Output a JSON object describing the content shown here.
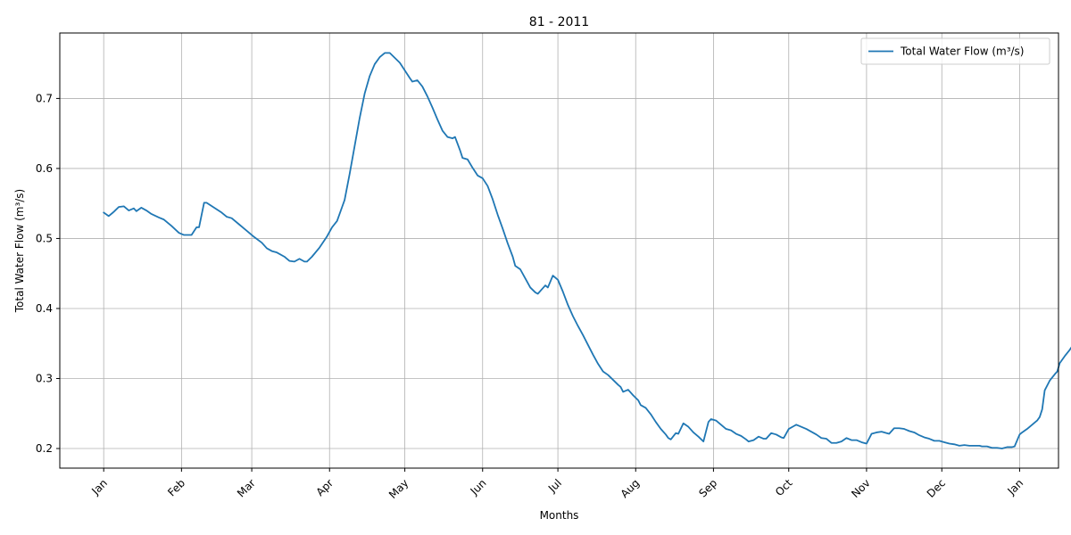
{
  "chart_data": {
    "type": "line",
    "title": "81 - 2011",
    "xlabel": "Months",
    "ylabel": "Total Water Flow (m³/s)",
    "x_ticks": [
      "Jan",
      "Feb",
      "Mar",
      "Apr",
      "May",
      "Jun",
      "Jul",
      "Aug",
      "Sep",
      "Oct",
      "Nov",
      "Dec",
      "Jan"
    ],
    "x_tick_days": [
      1,
      32,
      60,
      91,
      121,
      152,
      182,
      213,
      244,
      274,
      305,
      335,
      366
    ],
    "x_tick_rotation_deg": -45,
    "xlim_days": [
      -16.5,
      381.5
    ],
    "y_ticks": [
      0.2,
      0.3,
      0.4,
      0.5,
      0.6,
      0.7
    ],
    "y_tick_labels": [
      "0.2",
      "0.3",
      "0.4",
      "0.5",
      "0.6",
      "0.7"
    ],
    "ylim": [
      0.172,
      0.7935
    ],
    "grid": true,
    "legend_position": "top-right",
    "series": [
      {
        "name": "Total Water Flow (m³/s)",
        "color": "#1f77b4",
        "points": [
          [
            1,
            0.537
          ],
          [
            3,
            0.532
          ],
          [
            5,
            0.538
          ],
          [
            7,
            0.545
          ],
          [
            9,
            0.546
          ],
          [
            11,
            0.54
          ],
          [
            13,
            0.543
          ],
          [
            14,
            0.539
          ],
          [
            16,
            0.544
          ],
          [
            18,
            0.54
          ],
          [
            20,
            0.535
          ],
          [
            23,
            0.53
          ],
          [
            25,
            0.527
          ],
          [
            28,
            0.518
          ],
          [
            31,
            0.508
          ],
          [
            33,
            0.505
          ],
          [
            35,
            0.505
          ],
          [
            36,
            0.505
          ],
          [
            38,
            0.516
          ],
          [
            39,
            0.516
          ],
          [
            41,
            0.551
          ],
          [
            42,
            0.551
          ],
          [
            45,
            0.544
          ],
          [
            48,
            0.537
          ],
          [
            50,
            0.531
          ],
          [
            52,
            0.529
          ],
          [
            55,
            0.52
          ],
          [
            58,
            0.511
          ],
          [
            61,
            0.502
          ],
          [
            64,
            0.494
          ],
          [
            66,
            0.486
          ],
          [
            68,
            0.482
          ],
          [
            70,
            0.48
          ],
          [
            73,
            0.474
          ],
          [
            75,
            0.468
          ],
          [
            77,
            0.467
          ],
          [
            79,
            0.471
          ],
          [
            81,
            0.467
          ],
          [
            82,
            0.467
          ],
          [
            84,
            0.474
          ],
          [
            87,
            0.487
          ],
          [
            90,
            0.503
          ],
          [
            92,
            0.516
          ],
          [
            94,
            0.525
          ],
          [
            96,
            0.545
          ],
          [
            97,
            0.555
          ],
          [
            99,
            0.592
          ],
          [
            101,
            0.632
          ],
          [
            103,
            0.672
          ],
          [
            105,
            0.707
          ],
          [
            107,
            0.732
          ],
          [
            109,
            0.749
          ],
          [
            111,
            0.759
          ],
          [
            113,
            0.765
          ],
          [
            115,
            0.765
          ],
          [
            117,
            0.758
          ],
          [
            119,
            0.751
          ],
          [
            121,
            0.74
          ],
          [
            123,
            0.729
          ],
          [
            124,
            0.724
          ],
          [
            126,
            0.726
          ],
          [
            128,
            0.717
          ],
          [
            130,
            0.703
          ],
          [
            132,
            0.687
          ],
          [
            134,
            0.67
          ],
          [
            136,
            0.654
          ],
          [
            138,
            0.645
          ],
          [
            140,
            0.643
          ],
          [
            141,
            0.645
          ],
          [
            143,
            0.626
          ],
          [
            144,
            0.615
          ],
          [
            146,
            0.613
          ],
          [
            148,
            0.601
          ],
          [
            150,
            0.59
          ],
          [
            152,
            0.586
          ],
          [
            154,
            0.575
          ],
          [
            156,
            0.556
          ],
          [
            158,
            0.534
          ],
          [
            160,
            0.514
          ],
          [
            162,
            0.493
          ],
          [
            164,
            0.474
          ],
          [
            165,
            0.461
          ],
          [
            167,
            0.456
          ],
          [
            169,
            0.443
          ],
          [
            171,
            0.43
          ],
          [
            173,
            0.423
          ],
          [
            174,
            0.421
          ],
          [
            176,
            0.429
          ],
          [
            177,
            0.433
          ],
          [
            178,
            0.43
          ],
          [
            180,
            0.447
          ],
          [
            182,
            0.441
          ],
          [
            184,
            0.424
          ],
          [
            186,
            0.405
          ],
          [
            188,
            0.389
          ],
          [
            190,
            0.375
          ],
          [
            192,
            0.362
          ],
          [
            194,
            0.348
          ],
          [
            196,
            0.334
          ],
          [
            198,
            0.321
          ],
          [
            200,
            0.31
          ],
          [
            202,
            0.305
          ],
          [
            204,
            0.298
          ],
          [
            206,
            0.291
          ],
          [
            207,
            0.288
          ],
          [
            208,
            0.281
          ],
          [
            210,
            0.284
          ],
          [
            212,
            0.276
          ],
          [
            214,
            0.269
          ],
          [
            215,
            0.262
          ],
          [
            217,
            0.258
          ],
          [
            219,
            0.249
          ],
          [
            221,
            0.238
          ],
          [
            223,
            0.228
          ],
          [
            225,
            0.22
          ],
          [
            226,
            0.215
          ],
          [
            227,
            0.213
          ],
          [
            229,
            0.222
          ],
          [
            230,
            0.221
          ],
          [
            232,
            0.236
          ],
          [
            234,
            0.231
          ],
          [
            236,
            0.223
          ],
          [
            238,
            0.217
          ],
          [
            240,
            0.21
          ],
          [
            242,
            0.238
          ],
          [
            243,
            0.242
          ],
          [
            245,
            0.24
          ],
          [
            247,
            0.234
          ],
          [
            249,
            0.228
          ],
          [
            251,
            0.226
          ],
          [
            253,
            0.221
          ],
          [
            255,
            0.218
          ],
          [
            257,
            0.213
          ],
          [
            258,
            0.21
          ],
          [
            260,
            0.212
          ],
          [
            262,
            0.217
          ],
          [
            264,
            0.214
          ],
          [
            265,
            0.214
          ],
          [
            267,
            0.222
          ],
          [
            269,
            0.22
          ],
          [
            271,
            0.216
          ],
          [
            272,
            0.215
          ],
          [
            274,
            0.228
          ],
          [
            276,
            0.232
          ],
          [
            277,
            0.234
          ],
          [
            279,
            0.231
          ],
          [
            281,
            0.228
          ],
          [
            283,
            0.224
          ],
          [
            285,
            0.22
          ],
          [
            287,
            0.215
          ],
          [
            289,
            0.214
          ],
          [
            291,
            0.208
          ],
          [
            293,
            0.208
          ],
          [
            295,
            0.21
          ],
          [
            297,
            0.215
          ],
          [
            299,
            0.212
          ],
          [
            301,
            0.212
          ],
          [
            303,
            0.209
          ],
          [
            305,
            0.207
          ],
          [
            307,
            0.221
          ],
          [
            309,
            0.223
          ],
          [
            311,
            0.224
          ],
          [
            313,
            0.222
          ],
          [
            314,
            0.221
          ],
          [
            316,
            0.229
          ],
          [
            318,
            0.229
          ],
          [
            320,
            0.228
          ],
          [
            322,
            0.225
          ],
          [
            324,
            0.223
          ],
          [
            326,
            0.219
          ],
          [
            328,
            0.216
          ],
          [
            330,
            0.214
          ],
          [
            332,
            0.211
          ],
          [
            334,
            0.211
          ],
          [
            336,
            0.209
          ],
          [
            338,
            0.207
          ],
          [
            340,
            0.206
          ],
          [
            342,
            0.204
          ],
          [
            344,
            0.205
          ],
          [
            346,
            0.204
          ],
          [
            348,
            0.204
          ],
          [
            350,
            0.204
          ],
          [
            351,
            0.203
          ],
          [
            353,
            0.203
          ],
          [
            355,
            0.201
          ],
          [
            357,
            0.201
          ],
          [
            359,
            0.2
          ],
          [
            361,
            0.202
          ],
          [
            363,
            0.202
          ],
          [
            364,
            0.203
          ],
          [
            366,
            0.22
          ],
          [
            367,
            0.223
          ],
          [
            369,
            0.228
          ],
          [
            371,
            0.234
          ],
          [
            373,
            0.24
          ],
          [
            374,
            0.245
          ],
          [
            375,
            0.256
          ],
          [
            376,
            0.283
          ],
          [
            378,
            0.297
          ],
          [
            380,
            0.306
          ],
          [
            381,
            0.31
          ],
          [
            382,
            0.322
          ],
          [
            384,
            0.332
          ],
          [
            386,
            0.341
          ],
          [
            388,
            0.352
          ],
          [
            389,
            0.358
          ],
          [
            390,
            0.363
          ]
        ]
      }
    ]
  }
}
